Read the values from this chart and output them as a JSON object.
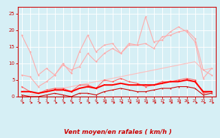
{
  "x": [
    0,
    1,
    2,
    3,
    4,
    5,
    6,
    7,
    8,
    9,
    10,
    11,
    12,
    13,
    14,
    15,
    16,
    17,
    18,
    19,
    20,
    21,
    22,
    23
  ],
  "series": [
    {
      "y": [
        0.0,
        0.5,
        1.0,
        1.5,
        2.0,
        2.5,
        3.0,
        3.5,
        4.0,
        4.5,
        5.0,
        5.5,
        6.0,
        6.5,
        7.0,
        7.5,
        8.0,
        8.5,
        9.0,
        9.5,
        10.0,
        10.5,
        8.0,
        8.5
      ],
      "color": "#ffbbbb",
      "lw": 0.8,
      "marker": null,
      "ms": 0
    },
    {
      "y": [
        18.5,
        13.5,
        6.5,
        8.5,
        6.5,
        10.0,
        7.0,
        13.5,
        18.5,
        13.5,
        15.5,
        16.0,
        13.0,
        16.0,
        15.5,
        24.0,
        16.5,
        17.0,
        19.5,
        21.0,
        19.5,
        16.5,
        5.5,
        8.5
      ],
      "color": "#ffaaaa",
      "lw": 0.8,
      "marker": "D",
      "ms": 1.5
    },
    {
      "y": [
        6.5,
        6.0,
        3.0,
        4.5,
        6.5,
        9.5,
        8.0,
        9.0,
        13.0,
        10.5,
        13.0,
        14.5,
        13.0,
        15.5,
        15.5,
        16.0,
        14.5,
        18.0,
        18.5,
        19.5,
        20.0,
        17.5,
        8.0,
        6.5
      ],
      "color": "#ffaaaa",
      "lw": 0.8,
      "marker": "D",
      "ms": 1.5
    },
    {
      "y": [
        3.0,
        1.5,
        1.0,
        2.0,
        2.5,
        2.5,
        1.5,
        3.5,
        3.5,
        2.5,
        5.0,
        4.5,
        5.5,
        4.5,
        4.0,
        3.0,
        3.5,
        4.5,
        4.5,
        5.0,
        5.5,
        5.0,
        1.0,
        1.5
      ],
      "color": "#ff6666",
      "lw": 0.8,
      "marker": "D",
      "ms": 1.5
    },
    {
      "y": [
        1.5,
        1.5,
        1.0,
        1.5,
        2.0,
        2.0,
        1.5,
        2.5,
        3.0,
        2.5,
        3.5,
        3.5,
        4.0,
        3.5,
        3.5,
        3.5,
        3.5,
        4.0,
        4.5,
        4.5,
        5.0,
        4.5,
        1.5,
        1.5
      ],
      "color": "#ff0000",
      "lw": 1.5,
      "marker": "s",
      "ms": 1.5
    },
    {
      "y": [
        0.5,
        0.0,
        0.0,
        0.5,
        1.0,
        0.5,
        0.0,
        1.0,
        1.0,
        0.5,
        1.5,
        2.0,
        2.5,
        2.0,
        1.5,
        1.5,
        2.0,
        2.5,
        2.5,
        3.0,
        3.0,
        2.5,
        0.5,
        1.0
      ],
      "color": "#cc0000",
      "lw": 0.8,
      "marker": "^",
      "ms": 1.5
    }
  ],
  "xlabel": "Vent moyen/en rafales ( km/h )",
  "ylim": [
    0,
    27
  ],
  "xlim": [
    -0.5,
    23.5
  ],
  "yticks": [
    0,
    5,
    10,
    15,
    20,
    25
  ],
  "xticks": [
    0,
    1,
    2,
    3,
    4,
    5,
    6,
    7,
    8,
    9,
    10,
    11,
    12,
    13,
    14,
    15,
    16,
    17,
    18,
    19,
    20,
    21,
    22,
    23
  ],
  "bg_color": "#d6eff5",
  "grid_color": "#ffffff",
  "text_color": "#cc0000"
}
